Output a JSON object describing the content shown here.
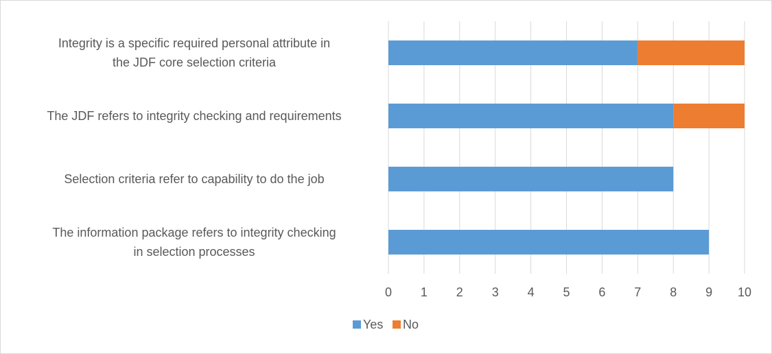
{
  "chart_data": {
    "type": "bar",
    "orientation": "horizontal",
    "stacked": true,
    "title": "",
    "xlabel": "",
    "ylabel": "",
    "categories": [
      [
        "Integrity is a specific required personal attribute in",
        "the JDF core selection criteria"
      ],
      [
        "The JDF refers to integrity checking and requirements"
      ],
      [
        "Selection criteria refer to capability to do the job"
      ],
      [
        "The information package refers to integrity checking",
        "in selection processes"
      ]
    ],
    "series": [
      {
        "name": "Yes",
        "color": "#5b9bd5",
        "values": [
          7,
          8,
          8,
          9
        ]
      },
      {
        "name": "No",
        "color": "#ed7d31",
        "values": [
          3,
          2,
          0,
          0
        ]
      }
    ],
    "xlim": [
      0,
      10
    ],
    "xticks": [
      "0",
      "1",
      "2",
      "3",
      "4",
      "5",
      "6",
      "7",
      "8",
      "9",
      "10"
    ],
    "grid": true,
    "gridline_color": "#d9d9d9",
    "legend_position": "bottom"
  }
}
